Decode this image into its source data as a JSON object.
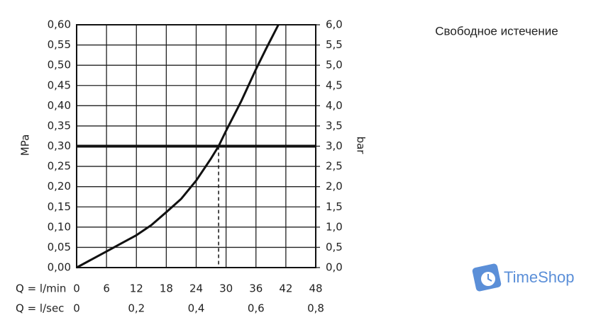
{
  "chart_data": {
    "type": "line",
    "title": "Свободное истечение",
    "y_label": "MPa",
    "y2_label": "bar",
    "x_label": "Q = l/min",
    "x2_label": "Q = l/sec",
    "x": [
      0,
      3,
      6,
      9,
      12,
      15,
      18,
      21,
      24,
      27,
      28.5,
      30,
      33,
      36,
      38,
      40.5
    ],
    "values": [
      0,
      0.02,
      0.04,
      0.06,
      0.08,
      0.105,
      0.137,
      0.17,
      0.215,
      0.27,
      0.3,
      0.338,
      0.41,
      0.49,
      0.54,
      0.6
    ],
    "color": "#111111",
    "xlim": [
      0,
      48
    ],
    "xticks": [
      0,
      6,
      12,
      18,
      24,
      30,
      36,
      42,
      48
    ],
    "x2lim": [
      0,
      0.8
    ],
    "x2ticks": [
      0,
      {
        "value": 0.2,
        "label": "0,2"
      },
      {
        "value": 0.4,
        "label": "0,4"
      },
      {
        "value": 0.6,
        "label": "0,6"
      },
      {
        "value": 0.8,
        "label": "0,8"
      }
    ],
    "ylim": [
      0,
      0.6
    ],
    "yticks": [
      {
        "value": 0,
        "label": "0,00"
      },
      {
        "value": 0.05,
        "label": "0,05"
      },
      {
        "value": 0.1,
        "label": "0,10"
      },
      {
        "value": 0.15,
        "label": "0,15"
      },
      {
        "value": 0.2,
        "label": "0,20"
      },
      {
        "value": 0.25,
        "label": "0,25"
      },
      {
        "value": 0.3,
        "label": "0,30"
      },
      {
        "value": 0.35,
        "label": "0,35"
      },
      {
        "value": 0.4,
        "label": "0,40"
      },
      {
        "value": 0.45,
        "label": "0,45"
      },
      {
        "value": 0.5,
        "label": "0,50"
      },
      {
        "value": 0.55,
        "label": "0,55"
      },
      {
        "value": 0.6,
        "label": "0,60"
      }
    ],
    "y2lim": [
      0,
      6
    ],
    "y2ticks": [
      {
        "value": 0,
        "label": "0,0"
      },
      {
        "value": 0.5,
        "label": "0,5"
      },
      {
        "value": 1,
        "label": "1,0"
      },
      {
        "value": 1.5,
        "label": "1,5"
      },
      {
        "value": 2,
        "label": "2,0"
      },
      {
        "value": 2.5,
        "label": "2,5"
      },
      {
        "value": 3,
        "label": "3,0"
      },
      {
        "value": 3.5,
        "label": "3,5"
      },
      {
        "value": 4,
        "label": "4,0"
      },
      {
        "value": 4.5,
        "label": "4,5"
      },
      {
        "value": 5,
        "label": "5,0"
      },
      {
        "value": 5.5,
        "label": "5,5"
      },
      {
        "value": 6,
        "label": "6,0"
      }
    ],
    "grid": true,
    "reference_line": 0.3,
    "marker_x": 28.5
  },
  "watermark": "TimeShop"
}
